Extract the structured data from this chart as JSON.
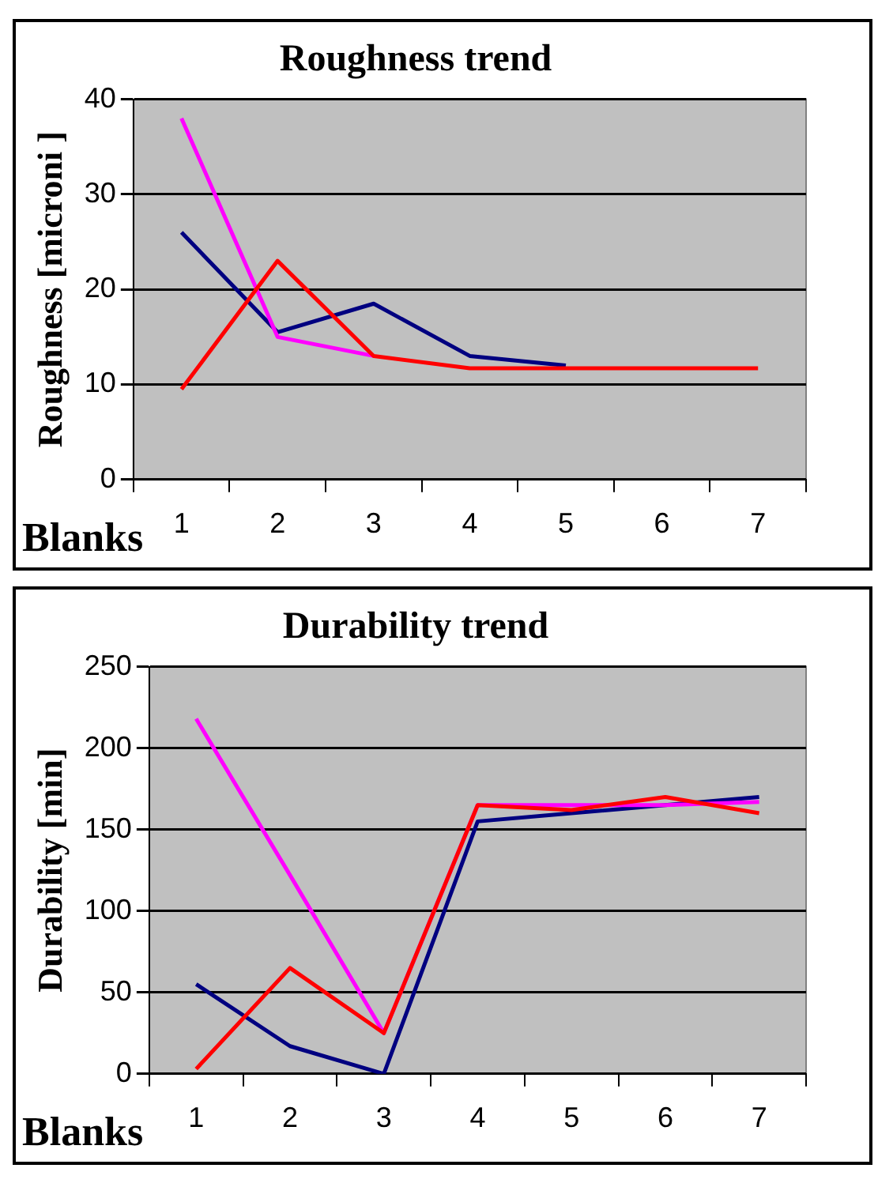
{
  "chart_data": [
    {
      "type": "line",
      "title": "Roughness trend",
      "xlabel": "Blanks",
      "ylabel": "Roughness [microni ]",
      "categories": [
        "1",
        "2",
        "3",
        "4",
        "5",
        "6",
        "7"
      ],
      "series": [
        {
          "color": "#000080",
          "values": [
            26,
            15.5,
            18.5,
            13,
            12,
            null,
            null
          ]
        },
        {
          "color": "#ff00ff",
          "values": [
            38,
            15,
            13,
            null,
            null,
            null,
            null
          ]
        },
        {
          "color": "#ff0000",
          "values": [
            9.5,
            23,
            13,
            11.7,
            11.7,
            11.7,
            11.7
          ]
        }
      ],
      "ylim": [
        0,
        40
      ],
      "yticks": [
        0,
        10,
        20,
        30,
        40
      ],
      "grid": "y",
      "legend": false,
      "marker": "none",
      "line_style": "solid"
    },
    {
      "type": "line",
      "title": "Durability trend",
      "xlabel": "Blanks",
      "ylabel": "Durability [min]",
      "categories": [
        "1",
        "2",
        "3",
        "4",
        "5",
        "6",
        "7"
      ],
      "series": [
        {
          "color": "#000080",
          "values": [
            55,
            17,
            0,
            155,
            160,
            165,
            170
          ]
        },
        {
          "color": "#ff00ff",
          "values": [
            218,
            122,
            25,
            165,
            165,
            165,
            167
          ]
        },
        {
          "color": "#ff0000",
          "values": [
            3,
            65,
            25,
            165,
            162,
            170,
            160
          ]
        }
      ],
      "ylim": [
        0,
        250
      ],
      "yticks": [
        0,
        50,
        100,
        150,
        200,
        250
      ],
      "grid": "y",
      "legend": false,
      "marker": "none",
      "line_style": "solid"
    }
  ]
}
